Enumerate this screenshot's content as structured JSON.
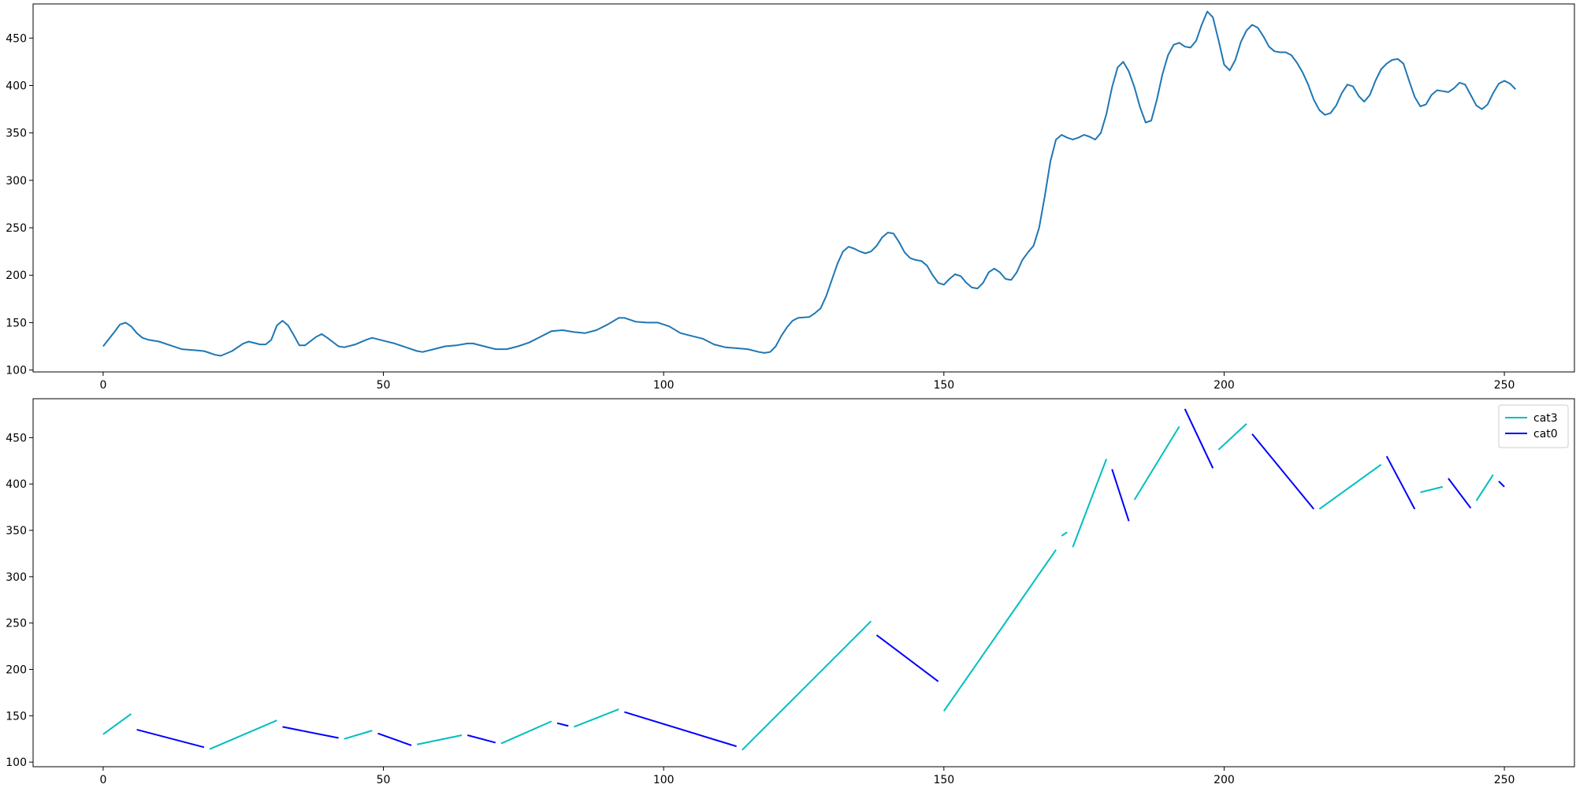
{
  "chart_data": [
    {
      "type": "line",
      "title": "",
      "xlabel": "",
      "ylabel": "",
      "xlim": [
        -12.5,
        262.5
      ],
      "ylim": [
        98,
        486
      ],
      "xticks": [
        0,
        50,
        100,
        150,
        200,
        250
      ],
      "yticks": [
        100,
        150,
        200,
        250,
        300,
        350,
        400,
        450
      ],
      "grid": false,
      "color": "#1f77b4",
      "series": [
        {
          "points": [
            [
              0,
              125
            ],
            [
              2,
              140
            ],
            [
              3,
              148
            ],
            [
              4,
              150
            ],
            [
              5,
              146
            ],
            [
              6,
              139
            ],
            [
              7,
              134
            ],
            [
              8,
              132
            ],
            [
              10,
              130
            ],
            [
              12,
              126
            ],
            [
              14,
              122
            ],
            [
              16,
              121
            ],
            [
              18,
              120
            ],
            [
              20,
              116
            ],
            [
              21,
              115
            ],
            [
              23,
              120
            ],
            [
              25,
              128
            ],
            [
              26,
              130
            ],
            [
              28,
              127
            ],
            [
              29,
              127
            ],
            [
              30,
              132
            ],
            [
              31,
              147
            ],
            [
              32,
              152
            ],
            [
              33,
              147
            ],
            [
              34,
              137
            ],
            [
              35,
              126
            ],
            [
              36,
              126
            ],
            [
              38,
              135
            ],
            [
              39,
              138
            ],
            [
              40,
              134
            ],
            [
              42,
              125
            ],
            [
              43,
              124
            ],
            [
              45,
              127
            ],
            [
              47,
              132
            ],
            [
              48,
              134
            ],
            [
              50,
              131
            ],
            [
              52,
              128
            ],
            [
              54,
              124
            ],
            [
              56,
              120
            ],
            [
              57,
              119
            ],
            [
              59,
              122
            ],
            [
              61,
              125
            ],
            [
              63,
              126
            ],
            [
              65,
              128
            ],
            [
              66,
              128
            ],
            [
              68,
              125
            ],
            [
              70,
              122
            ],
            [
              72,
              122
            ],
            [
              74,
              125
            ],
            [
              76,
              129
            ],
            [
              78,
              135
            ],
            [
              80,
              141
            ],
            [
              82,
              142
            ],
            [
              84,
              140
            ],
            [
              86,
              139
            ],
            [
              88,
              142
            ],
            [
              90,
              148
            ],
            [
              92,
              155
            ],
            [
              93,
              155
            ],
            [
              95,
              151
            ],
            [
              97,
              150
            ],
            [
              99,
              150
            ],
            [
              101,
              146
            ],
            [
              103,
              139
            ],
            [
              105,
              136
            ],
            [
              107,
              133
            ],
            [
              109,
              127
            ],
            [
              111,
              124
            ],
            [
              113,
              123
            ],
            [
              115,
              122
            ],
            [
              117,
              119
            ],
            [
              118,
              118
            ],
            [
              119,
              119
            ],
            [
              120,
              125
            ],
            [
              121,
              136
            ],
            [
              122,
              145
            ],
            [
              123,
              152
            ],
            [
              124,
              155
            ],
            [
              126,
              156
            ],
            [
              127,
              160
            ],
            [
              128,
              165
            ],
            [
              129,
              178
            ],
            [
              130,
              195
            ],
            [
              131,
              212
            ],
            [
              132,
              225
            ],
            [
              133,
              230
            ],
            [
              134,
              228
            ],
            [
              135,
              225
            ],
            [
              136,
              223
            ],
            [
              137,
              225
            ],
            [
              138,
              231
            ],
            [
              139,
              240
            ],
            [
              140,
              245
            ],
            [
              141,
              244
            ],
            [
              142,
              235
            ],
            [
              143,
              224
            ],
            [
              144,
              218
            ],
            [
              145,
              216
            ],
            [
              146,
              215
            ],
            [
              147,
              210
            ],
            [
              148,
              200
            ],
            [
              149,
              192
            ],
            [
              150,
              190
            ],
            [
              151,
              196
            ],
            [
              152,
              201
            ],
            [
              153,
              199
            ],
            [
              154,
              192
            ],
            [
              155,
              187
            ],
            [
              156,
              186
            ],
            [
              157,
              192
            ],
            [
              158,
              203
            ],
            [
              159,
              207
            ],
            [
              160,
              203
            ],
            [
              161,
              196
            ],
            [
              162,
              195
            ],
            [
              163,
              203
            ],
            [
              164,
              216
            ],
            [
              165,
              224
            ],
            [
              166,
              231
            ],
            [
              167,
              250
            ],
            [
              168,
              283
            ],
            [
              169,
              320
            ],
            [
              170,
              343
            ],
            [
              171,
              348
            ],
            [
              172,
              345
            ],
            [
              173,
              343
            ],
            [
              174,
              345
            ],
            [
              175,
              348
            ],
            [
              176,
              346
            ],
            [
              177,
              343
            ],
            [
              178,
              350
            ],
            [
              179,
              370
            ],
            [
              180,
              398
            ],
            [
              181,
              419
            ],
            [
              182,
              425
            ],
            [
              183,
              415
            ],
            [
              184,
              398
            ],
            [
              185,
              377
            ],
            [
              186,
              361
            ],
            [
              187,
              363
            ],
            [
              188,
              385
            ],
            [
              189,
              412
            ],
            [
              190,
              432
            ],
            [
              191,
              443
            ],
            [
              192,
              445
            ],
            [
              193,
              441
            ],
            [
              194,
              440
            ],
            [
              195,
              447
            ],
            [
              196,
              464
            ],
            [
              197,
              478
            ],
            [
              198,
              472
            ],
            [
              199,
              448
            ],
            [
              200,
              422
            ],
            [
              201,
              416
            ],
            [
              202,
              427
            ],
            [
              203,
              446
            ],
            [
              204,
              458
            ],
            [
              205,
              464
            ],
            [
              206,
              461
            ],
            [
              207,
              452
            ],
            [
              208,
              441
            ],
            [
              209,
              436
            ],
            [
              210,
              435
            ],
            [
              211,
              435
            ],
            [
              212,
              432
            ],
            [
              213,
              424
            ],
            [
              214,
              414
            ],
            [
              215,
              401
            ],
            [
              216,
              385
            ],
            [
              217,
              374
            ],
            [
              218,
              369
            ],
            [
              219,
              371
            ],
            [
              220,
              379
            ],
            [
              221,
              392
            ],
            [
              222,
              401
            ],
            [
              223,
              399
            ],
            [
              224,
              389
            ],
            [
              225,
              383
            ],
            [
              226,
              390
            ],
            [
              227,
              405
            ],
            [
              228,
              417
            ],
            [
              229,
              423
            ],
            [
              230,
              427
            ],
            [
              231,
              428
            ],
            [
              232,
              423
            ],
            [
              233,
              405
            ],
            [
              234,
              388
            ],
            [
              235,
              378
            ],
            [
              236,
              380
            ],
            [
              237,
              390
            ],
            [
              238,
              395
            ],
            [
              239,
              394
            ],
            [
              240,
              393
            ],
            [
              241,
              397
            ],
            [
              242,
              403
            ],
            [
              243,
              401
            ],
            [
              244,
              390
            ],
            [
              245,
              379
            ],
            [
              246,
              375
            ],
            [
              247,
              380
            ],
            [
              248,
              392
            ],
            [
              249,
              402
            ],
            [
              250,
              405
            ],
            [
              251,
              402
            ],
            [
              252,
              396
            ]
          ]
        }
      ]
    },
    {
      "type": "line",
      "title": "",
      "xlabel": "",
      "ylabel": "",
      "xlim": [
        -12.5,
        262.5
      ],
      "ylim": [
        95,
        492
      ],
      "xticks": [
        0,
        50,
        100,
        150,
        200,
        250
      ],
      "yticks": [
        100,
        150,
        200,
        250,
        300,
        350,
        400,
        450
      ],
      "grid": false,
      "legend": {
        "placement": "top-right"
      },
      "series": [
        {
          "name": "cat3",
          "color": "#00bfbf",
          "segments": [
            [
              [
                0,
                130
              ],
              [
                5,
                152
              ]
            ],
            [
              [
                19,
                114
              ],
              [
                31,
                145
              ]
            ],
            [
              [
                43,
                125
              ],
              [
                48,
                134
              ]
            ],
            [
              [
                56,
                119
              ],
              [
                64,
                129
              ]
            ],
            [
              [
                71,
                120
              ],
              [
                80,
                144
              ]
            ],
            [
              [
                84,
                138
              ],
              [
                92,
                157
              ]
            ],
            [
              [
                114,
                113
              ],
              [
                137,
                252
              ]
            ],
            [
              [
                150,
                155
              ],
              [
                170,
                329
              ]
            ],
            [
              [
                171,
                344
              ],
              [
                172,
                348
              ]
            ],
            [
              [
                173,
                332
              ],
              [
                179,
                427
              ]
            ],
            [
              [
                184,
                383
              ],
              [
                192,
                462
              ]
            ],
            [
              [
                199,
                437
              ],
              [
                204,
                465
              ]
            ],
            [
              [
                217,
                373
              ],
              [
                228,
                421
              ]
            ],
            [
              [
                235,
                391
              ],
              [
                239,
                397
              ]
            ],
            [
              [
                245,
                382
              ],
              [
                248,
                410
              ]
            ]
          ]
        },
        {
          "name": "cat0",
          "color": "#0000ff",
          "segments": [
            [
              [
                6,
                135
              ],
              [
                18,
                116
              ]
            ],
            [
              [
                32,
                138
              ],
              [
                42,
                126
              ]
            ],
            [
              [
                49,
                131
              ],
              [
                55,
                118
              ]
            ],
            [
              [
                65,
                129
              ],
              [
                70,
                121
              ]
            ],
            [
              [
                81,
                142
              ],
              [
                83,
                139
              ]
            ],
            [
              [
                93,
                154
              ],
              [
                113,
                117
              ]
            ],
            [
              [
                138,
                237
              ],
              [
                149,
                187
              ]
            ],
            [
              [
                180,
                416
              ],
              [
                183,
                360
              ]
            ],
            [
              [
                193,
                481
              ],
              [
                198,
                417
              ]
            ],
            [
              [
                205,
                454
              ],
              [
                216,
                373
              ]
            ],
            [
              [
                229,
                430
              ],
              [
                234,
                373
              ]
            ],
            [
              [
                240,
                406
              ],
              [
                244,
                374
              ]
            ],
            [
              [
                249,
                403
              ],
              [
                250,
                397
              ]
            ]
          ]
        }
      ]
    }
  ]
}
